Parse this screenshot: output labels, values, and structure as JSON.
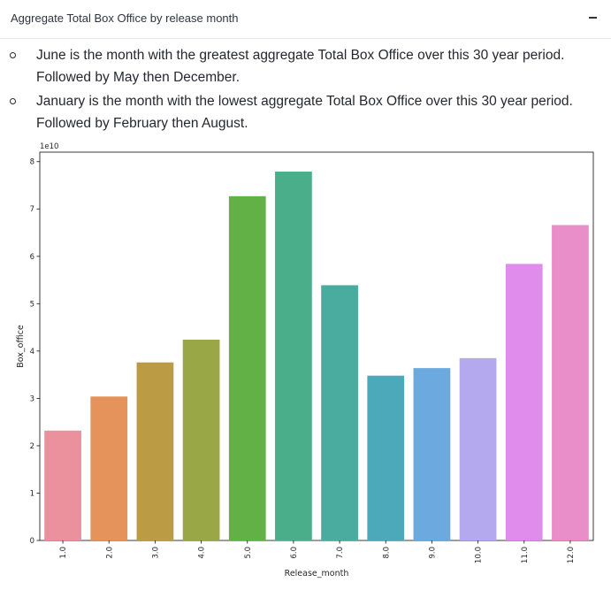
{
  "expander": {
    "title": "Aggregate Total Box Office by release month",
    "collapse_icon": "minus-icon"
  },
  "bullets": [
    "June is the month with the greatest aggregate Total Box Office over this 30 year period. Followed by May then December.",
    "January is the month with the lowest aggregate Total Box Office over this 30 year period. Followed by February then August."
  ],
  "chart_data": {
    "type": "bar",
    "title": "",
    "xlabel": "Release_month",
    "ylabel": "Box_office",
    "y_offset_text": "1e10",
    "categories": [
      "1.0",
      "2.0",
      "3.0",
      "4.0",
      "5.0",
      "6.0",
      "7.0",
      "8.0",
      "9.0",
      "10.0",
      "11.0",
      "12.0"
    ],
    "values": [
      23200000000.0,
      30400000000.0,
      37600000000.0,
      42400000000.0,
      72700000000.0,
      77900000000.0,
      53900000000.0,
      34800000000.0,
      36400000000.0,
      38500000000.0,
      58400000000.0,
      66600000000.0
    ],
    "colors": [
      "#ea919d",
      "#e5935a",
      "#bb9c45",
      "#99a746",
      "#61b146",
      "#4aae8a",
      "#4aab9f",
      "#4ba9b9",
      "#6ba9de",
      "#b4a8ee",
      "#e08ced",
      "#e98ec8"
    ],
    "yticks": [
      0,
      1,
      2,
      3,
      4,
      5,
      6,
      7,
      8
    ],
    "ylim": [
      0,
      82000000000.0
    ],
    "grid": false,
    "legend": "none"
  }
}
